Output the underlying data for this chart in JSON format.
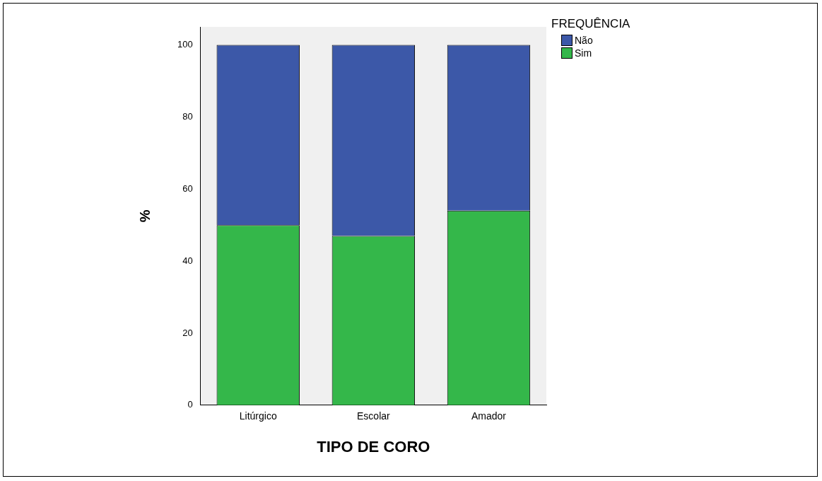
{
  "chart_data": {
    "type": "bar",
    "stacked": true,
    "xlabel": "TIPO DE CORO",
    "ylabel": "%",
    "legend_title": "FREQUÊNCIA",
    "legend": "top right",
    "grid": false,
    "categories": [
      "Litúrgico",
      "Escolar",
      "Amador"
    ],
    "ylim": [
      0,
      105
    ],
    "yticks": [
      0,
      20,
      40,
      60,
      80,
      100
    ],
    "series": [
      {
        "name": "Sim",
        "color": "#34b74a",
        "values": [
          50,
          47,
          54
        ]
      },
      {
        "name": "Não",
        "color": "#3c58a8",
        "values": [
          50,
          53,
          46
        ]
      }
    ]
  }
}
